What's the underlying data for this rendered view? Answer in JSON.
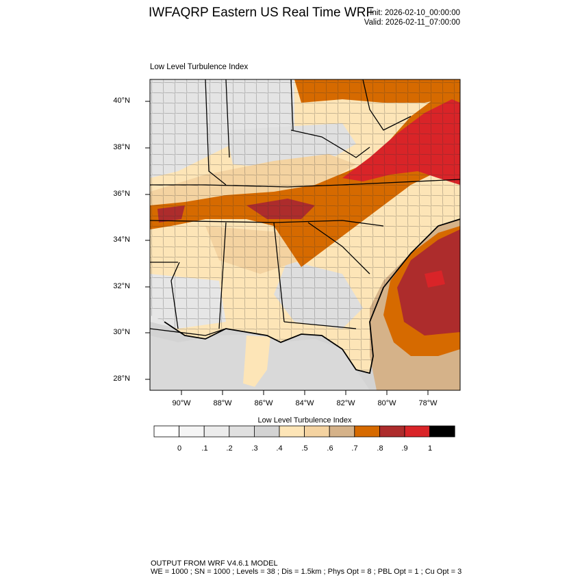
{
  "header": {
    "title": "IWFAQRP Eastern US Real Time WRF",
    "init": "Init: 2026-02-10_00:00:00",
    "valid": "Valid: 2026-02-11_07:00:00"
  },
  "map": {
    "panel_title": "Low Level Turbulence Index",
    "lat_labels": [
      "40°N",
      "38°N",
      "36°N",
      "34°N",
      "32°N",
      "30°N",
      "28°N"
    ],
    "lon_labels": [
      "90°W",
      "88°W",
      "86°W",
      "84°W",
      "82°W",
      "80°W",
      "78°W"
    ]
  },
  "colorbar": {
    "title": "Low Level Turbulence Index",
    "labels": [
      "0",
      ".1",
      ".2",
      ".3",
      ".4",
      ".5",
      ".6",
      ".7",
      ".8",
      ".9",
      "1"
    ],
    "colors": [
      "#ffffff",
      "#f5f5f5",
      "#ececec",
      "#e0e0e0",
      "#d3d3d3",
      "#fde5b7",
      "#f4d3a1",
      "#d5b289",
      "#d66a00",
      "#ad2c2c",
      "#d92428",
      "#000000"
    ]
  },
  "footer": {
    "line1": "OUTPUT FROM WRF V4.6.1 MODEL",
    "line2": "WE = 1000 ; SN = 1000 ; Levels = 38 ; Dis = 1.5km ; Phys Opt = 8 ; PBL Opt = 1 ; Cu Opt = 3"
  }
}
